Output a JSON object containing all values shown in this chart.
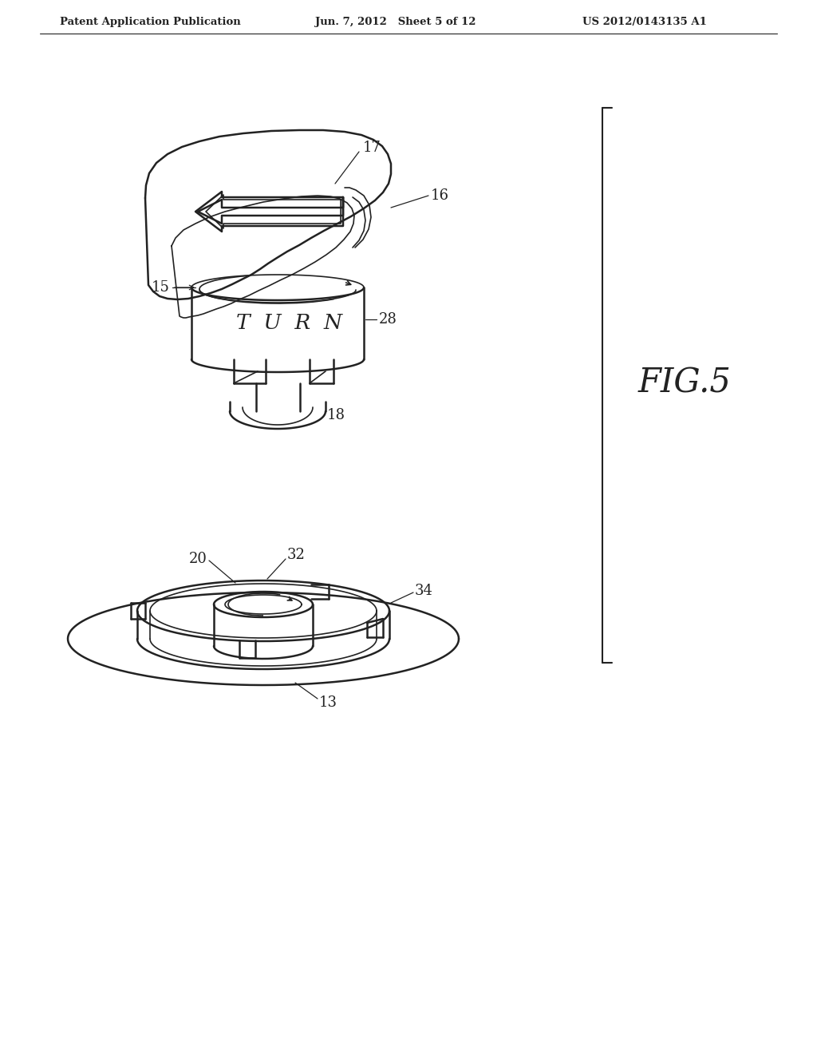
{
  "bg_color": "#ffffff",
  "line_color": "#222222",
  "header_left": "Patent Application Publication",
  "header_center": "Jun. 7, 2012   Sheet 5 of 12",
  "header_right": "US 2012/0143135 A1",
  "fig_label": "FIG.5",
  "label_17": "17",
  "label_16": "16",
  "label_15": "15",
  "label_28": "28",
  "label_18": "18",
  "label_20": "20",
  "label_32": "32",
  "label_34": "34",
  "label_13": "13"
}
